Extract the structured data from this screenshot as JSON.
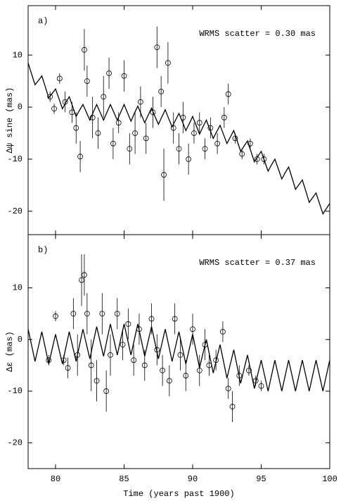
{
  "chart_data": [
    {
      "type": "scatter",
      "label": "a)",
      "annotation": "WRMS scatter = 0.30 mas",
      "ylabel": "Δψ sine (mas)",
      "xlim": [
        78,
        100
      ],
      "ylim": [
        -24.5,
        19.5
      ],
      "xticks": [
        80,
        85,
        90,
        95,
        100
      ],
      "yticks": [
        -20,
        -10,
        0,
        10
      ],
      "model": {
        "color": "#000000",
        "x": [
          78,
          78.25,
          78.5,
          78.75,
          79,
          79.25,
          79.5,
          79.75,
          80,
          80.25,
          80.5,
          80.75,
          81,
          81.25,
          81.5,
          81.75,
          82,
          82.25,
          82.5,
          82.75,
          83,
          83.25,
          83.5,
          83.75,
          84,
          84.25,
          84.5,
          84.75,
          85,
          85.25,
          85.5,
          85.75,
          86,
          86.25,
          86.5,
          86.75,
          87,
          87.25,
          87.5,
          87.75,
          88,
          88.25,
          88.5,
          88.75,
          89,
          89.25,
          89.5,
          89.75,
          90,
          90.25,
          90.5,
          90.75,
          91,
          91.25,
          91.5,
          91.75,
          92,
          92.25,
          92.5,
          92.75,
          93,
          93.25,
          93.5,
          93.75,
          94,
          94.25,
          94.5,
          94.75,
          95,
          95.25,
          95.5,
          95.75,
          96,
          96.25,
          96.5,
          96.75,
          97,
          97.25,
          97.5,
          97.75,
          98,
          98.25,
          98.5,
          98.75,
          99,
          99.25,
          99.5,
          99.75,
          100
        ],
        "values": [
          8.5,
          6.4,
          4.3,
          5.1,
          6.0,
          3.9,
          1.8,
          2.6,
          3.5,
          1.6,
          -0.3,
          0.9,
          2.0,
          0.1,
          -1.8,
          -0.6,
          0.5,
          -1,
          -2.5,
          -1,
          0.5,
          -1,
          -2.5,
          -1,
          0.5,
          -1,
          -2.5,
          -1,
          0.5,
          -1.1,
          -2.7,
          -1.2,
          0.2,
          -1.4,
          -3.0,
          -1.6,
          -0.2,
          -1.8,
          -3.3,
          -1.9,
          -0.5,
          -2.2,
          -3.8,
          -2.5,
          -1.2,
          -2.8,
          -4.5,
          -3.2,
          -1.8,
          -3.5,
          -5.2,
          -3.8,
          -2.5,
          -4.25,
          -6.0,
          -4.75,
          -3.5,
          -5.25,
          -7.0,
          -5.75,
          -4.5,
          -6.5,
          -8.5,
          -7.5,
          -6.5,
          -8.5,
          -10.5,
          -9.5,
          -8.5,
          -10.4,
          -12.3,
          -11.1,
          -10.0,
          -11.9,
          -13.8,
          -12.6,
          -11.5,
          -13.6,
          -15.8,
          -14.9,
          -14.0,
          -16.1,
          -18.3,
          -17.4,
          -16.5,
          -18.5,
          -20.5,
          -19.5,
          -18.5
        ]
      },
      "observations": {
        "color": "#000000",
        "x": [
          79.6,
          79.9,
          80.3,
          80.7,
          81.2,
          81.5,
          81.8,
          82.1,
          82.3,
          82.7,
          83.1,
          83.5,
          83.9,
          84.2,
          84.6,
          85.0,
          85.4,
          85.8,
          86.2,
          86.6,
          87.1,
          87.4,
          87.7,
          87.9,
          88.2,
          88.6,
          89.0,
          89.3,
          89.7,
          90.1,
          90.5,
          90.9,
          91.3,
          91.8,
          92.3,
          92.6,
          93.1,
          93.6,
          94.2,
          94.7,
          95.2
        ],
        "values": [
          2,
          -0.3,
          5.5,
          1,
          -1,
          -4,
          -9.5,
          11,
          5,
          -2,
          -5,
          2,
          6.5,
          -7,
          -3,
          6,
          -8,
          -5,
          1,
          -6,
          -1,
          11.5,
          3,
          -13,
          8.5,
          -4,
          -8,
          -2,
          -10,
          -5,
          -3,
          -8,
          -4,
          -7,
          -2,
          2.5,
          -6,
          -9,
          -7,
          -10,
          -10
        ],
        "errors": [
          1,
          1,
          1,
          2,
          2,
          3,
          3,
          4,
          3,
          4,
          3,
          4,
          3,
          3,
          2,
          3,
          3,
          4,
          3,
          3,
          3,
          4,
          3,
          5,
          4,
          3,
          3,
          3,
          3,
          2,
          2,
          2,
          2,
          2,
          2,
          2,
          1,
          1,
          1,
          1,
          1
        ]
      }
    },
    {
      "type": "scatter",
      "label": "b)",
      "annotation": "WRMS scatter = 0.37 mas",
      "ylabel": "Δε (mas)",
      "xlabel": "Time (years past 1900)",
      "xlim": [
        78,
        100
      ],
      "ylim": [
        -25,
        20.3
      ],
      "xticks": [
        80,
        85,
        90,
        95,
        100
      ],
      "yticks": [
        -20,
        -10,
        0,
        10
      ],
      "model": {
        "color": "#000000",
        "x": [
          78,
          78.25,
          78.5,
          78.75,
          79,
          79.25,
          79.5,
          79.75,
          80,
          80.25,
          80.5,
          80.75,
          81,
          81.25,
          81.5,
          81.75,
          82,
          82.25,
          82.5,
          82.75,
          83,
          83.25,
          83.5,
          83.75,
          84,
          84.25,
          84.5,
          84.75,
          85,
          85.25,
          85.5,
          85.75,
          86,
          86.25,
          86.5,
          86.75,
          87,
          87.25,
          87.5,
          87.75,
          88,
          88.25,
          88.5,
          88.75,
          89,
          89.25,
          89.5,
          89.75,
          90,
          90.25,
          90.5,
          90.75,
          91,
          91.25,
          91.5,
          91.75,
          92,
          92.25,
          92.5,
          92.75,
          93,
          93.25,
          93.5,
          93.75,
          94,
          94.25,
          94.5,
          94.75,
          95,
          95.25,
          95.5,
          95.75,
          96,
          96.25,
          96.5,
          96.75,
          97,
          97.25,
          97.5,
          97.75,
          98,
          98.25,
          98.5,
          98.75,
          99,
          99.25,
          99.5,
          99.75,
          100
        ],
        "values": [
          2,
          -1.1,
          -4.25,
          -1.4,
          1.5,
          -1.6,
          -4.75,
          -1.9,
          1,
          -1.9,
          -4.75,
          -1.6,
          1.5,
          -1.4,
          -4.25,
          -1.1,
          2,
          -0.9,
          -3.75,
          -0.6,
          2.5,
          -0.4,
          -3.25,
          -0.1,
          3,
          0,
          -3,
          0,
          3,
          0,
          -3,
          0,
          3,
          -0.1,
          -3.25,
          -0.4,
          2.5,
          -0.6,
          -3.75,
          -0.9,
          2,
          -1.1,
          -4.25,
          -1.4,
          1.5,
          -1.6,
          -4.75,
          -1.9,
          1,
          -2.25,
          -5.5,
          -2.75,
          0,
          -3.25,
          -6.5,
          -3.75,
          -1,
          -4.25,
          -7.5,
          -4.75,
          -2,
          -5.25,
          -8.5,
          -5.75,
          -3,
          -6.25,
          -9.5,
          -6.75,
          -4,
          -7,
          -10,
          -7,
          -4,
          -7,
          -10,
          -7,
          -4,
          -7,
          -10,
          -7,
          -4,
          -7,
          -10,
          -7,
          -4,
          -7,
          -10,
          -7,
          -4
        ]
      },
      "observations": {
        "color": "#000000",
        "x": [
          79.5,
          80,
          80.6,
          80.9,
          81.3,
          81.6,
          81.9,
          82.1,
          82.3,
          82.6,
          83.0,
          83.4,
          83.7,
          84.0,
          84.5,
          84.9,
          85.3,
          85.7,
          86.1,
          86.5,
          87.0,
          87.4,
          87.8,
          88.3,
          88.7,
          89.1,
          89.5,
          90.0,
          90.5,
          90.9,
          91.2,
          91.7,
          92.2,
          92.6,
          92.9,
          93.4,
          94.1,
          94.6,
          95.0
        ],
        "values": [
          -4,
          4.5,
          -4,
          -5.5,
          5,
          -3,
          11.5,
          12.5,
          5,
          -5,
          -8,
          5,
          -10,
          -3,
          5,
          -1,
          3,
          -4,
          2,
          -5,
          4,
          -2,
          -6,
          -8,
          4,
          -3,
          -7,
          2,
          -6,
          -1,
          -5,
          -4,
          1.5,
          -9.5,
          -13,
          -7,
          -6,
          -8,
          -9
        ],
        "errors": [
          1,
          1,
          1,
          2,
          3,
          4,
          5,
          4,
          4,
          5,
          4,
          4,
          4,
          4,
          3,
          3,
          3,
          3,
          3,
          3,
          3,
          3,
          3,
          3,
          3,
          3,
          3,
          3,
          3,
          3,
          2,
          2,
          2,
          2,
          3,
          2,
          1,
          1,
          1
        ]
      }
    }
  ]
}
